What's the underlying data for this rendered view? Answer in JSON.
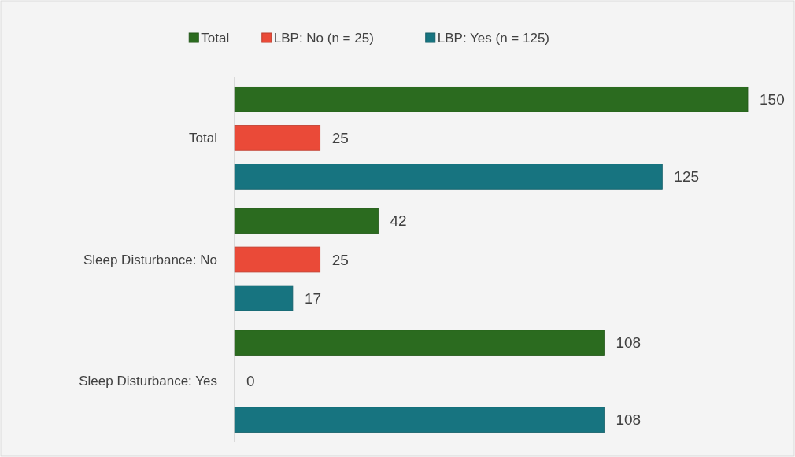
{
  "chart_data": {
    "type": "bar",
    "orientation": "horizontal",
    "categories": [
      "Total",
      "Sleep Disturbance: No",
      "Sleep Disturbance: Yes"
    ],
    "series": [
      {
        "name": "Total",
        "color": "#2b6b1f",
        "values": [
          150,
          42,
          108
        ]
      },
      {
        "name": "LBP: No (n = 25)",
        "color": "#ea4a38",
        "values": [
          25,
          25,
          0
        ]
      },
      {
        "name": "LBP: Yes (n = 125)",
        "color": "#177480",
        "values": [
          125,
          17,
          108
        ]
      }
    ],
    "data_labels": true,
    "legend": "top"
  }
}
